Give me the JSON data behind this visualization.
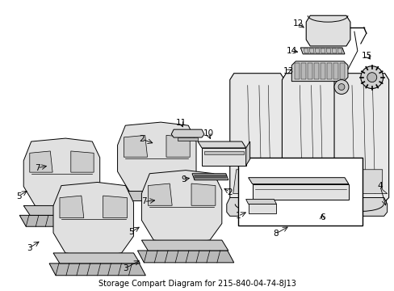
{
  "title": "Storage Compart Diagram for 215-840-04-74-8J13",
  "bg": "#ffffff",
  "lc": "#000000",
  "fig_w": 4.89,
  "fig_h": 3.6,
  "dpi": 100
}
